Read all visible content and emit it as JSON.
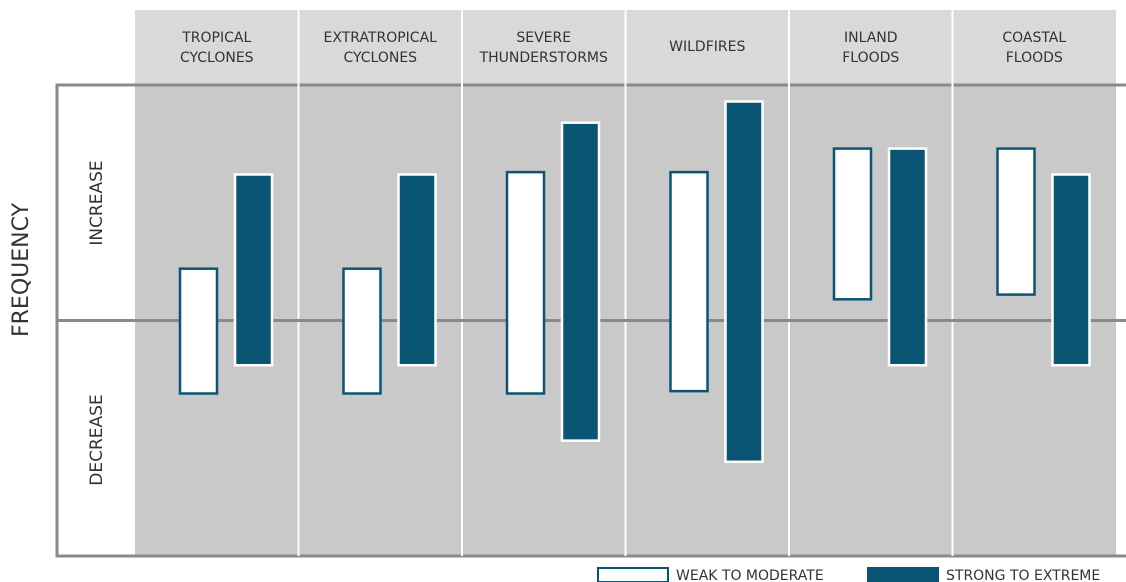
{
  "chart_data": {
    "type": "floating-bar",
    "y_label": "FREQUENCY",
    "region_labels": [
      "INCREASE",
      "DECREASE"
    ],
    "categories": [
      [
        "TROPICAL",
        "CYCLONES"
      ],
      [
        "EXTRATROPICAL",
        "CYCLONES"
      ],
      [
        "SEVERE",
        "THUNDERSTORMS"
      ],
      [
        "WILDFIRES"
      ],
      [
        "INLAND",
        "FLOODS"
      ],
      [
        "COASTAL",
        "FLOODS"
      ]
    ],
    "ylim": [
      -10,
      10
    ],
    "series": [
      {
        "name": "WEAK TO MODERATE",
        "color": "#ffffff",
        "low": [
          -3.1,
          -3.1,
          -3.1,
          -3.0,
          0.9,
          1.1
        ],
        "high": [
          2.2,
          2.2,
          6.3,
          6.3,
          7.3,
          7.3
        ]
      },
      {
        "name": "STRONG TO EXTREME",
        "color": "#0a5573",
        "low": [
          -1.9,
          -1.9,
          -5.1,
          -6.0,
          -1.9,
          -1.9
        ],
        "high": [
          6.2,
          6.2,
          8.4,
          9.3,
          7.3,
          6.2
        ]
      }
    ]
  }
}
